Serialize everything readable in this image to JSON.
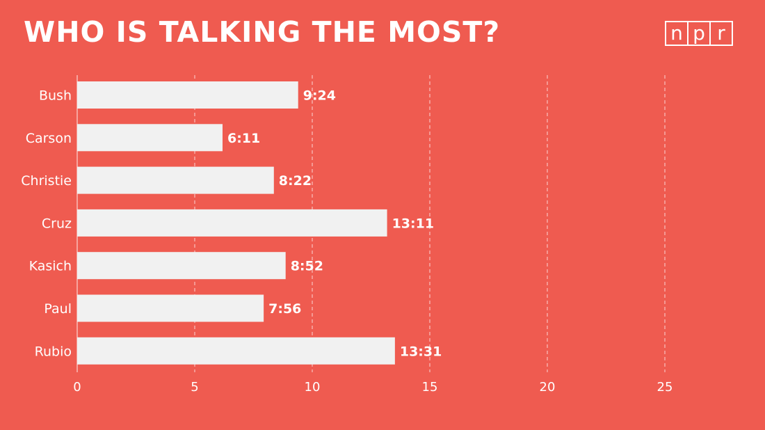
{
  "title": "WHO IS TALKING THE MOST?",
  "logo": {
    "letters": [
      "n",
      "p",
      "r"
    ]
  },
  "colors": {
    "background": "#ef5b50",
    "bar": "#f1f1f1",
    "text": "#ffffff"
  },
  "chart_data": {
    "type": "bar",
    "orientation": "horizontal",
    "categories": [
      "Bush",
      "Carson",
      "Christie",
      "Cruz",
      "Kasich",
      "Paul",
      "Rubio"
    ],
    "values": [
      9.4,
      6.183,
      8.367,
      13.183,
      8.867,
      7.933,
      13.517
    ],
    "value_labels": [
      "9:24",
      "6:11",
      "8:22",
      "13:11",
      "8:52",
      "7:56",
      "13:31"
    ],
    "xticks": [
      0,
      5,
      10,
      15,
      20,
      25
    ],
    "xlim": [
      0,
      28.6
    ],
    "grid": true,
    "legend": "none"
  }
}
